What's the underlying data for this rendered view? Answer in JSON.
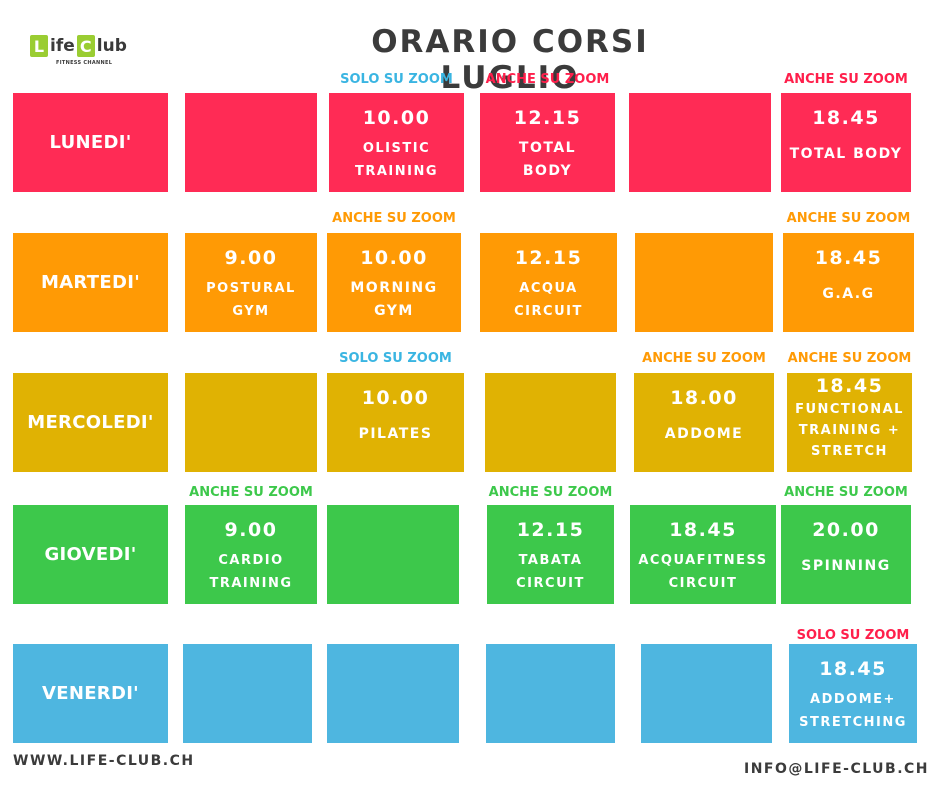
{
  "logo": {
    "l": "L",
    "ife": "ife",
    "c": "C",
    "lub": "lub",
    "subtitle": "FITNESS CHANNEL"
  },
  "title": "ORARIO CORSI LUGLIO",
  "colors": {
    "red": "#ff2b55",
    "orange": "#ff9a05",
    "yellow": "#e0b203",
    "green": "#3dc84b",
    "blue": "#4eb6e0",
    "solo_note": "#3ab5e2",
    "anche_note": "#ff9a05",
    "red_note": "#ff1f4b",
    "green_note": "#3dc84b"
  },
  "days": [
    {
      "name": "LUNEDI'",
      "notes": [
        "",
        "",
        "SOLO SU ZOOM",
        "ANCHE SU ZOOM",
        "",
        "ANCHE SU ZOOM"
      ],
      "classes": [
        {
          "time": "",
          "course": ""
        },
        {
          "time": "10.00",
          "course": "OLISTIC\nTRAINING"
        },
        {
          "time": "12.15",
          "course": "TOTAL\nBODY"
        },
        {
          "time": "",
          "course": ""
        },
        {
          "time": "18.45",
          "course": "TOTAL BODY"
        }
      ]
    },
    {
      "name": "MARTEDI'",
      "notes": [
        "",
        "",
        "ANCHE SU ZOOM",
        "",
        "",
        "ANCHE SU ZOOM"
      ],
      "classes": [
        {
          "time": "9.00",
          "course": "POSTURAL\nGYM"
        },
        {
          "time": "10.00",
          "course": "MORNING\nGYM"
        },
        {
          "time": "12.15",
          "course": "ACQUA\nCIRCUIT"
        },
        {
          "time": "",
          "course": ""
        },
        {
          "time": "18.45",
          "course": "G.A.G"
        }
      ]
    },
    {
      "name": "MERCOLEDI'",
      "notes": [
        "",
        "",
        "SOLO SU ZOOM",
        "",
        "ANCHE SU ZOOM",
        "ANCHE SU ZOOM"
      ],
      "classes": [
        {
          "time": "",
          "course": ""
        },
        {
          "time": "10.00",
          "course": "PILATES"
        },
        {
          "time": "",
          "course": ""
        },
        {
          "time": "18.00",
          "course": "ADDOME"
        },
        {
          "time": "18.45",
          "course": "FUNCTIONAL\nTRAINING +\nSTRETCH"
        }
      ]
    },
    {
      "name": "GIOVEDI'",
      "notes": [
        "",
        "ANCHE SU ZOOM",
        "",
        "ANCHE SU ZOOM",
        "",
        "ANCHE SU ZOOM"
      ],
      "classes": [
        {
          "time": "9.00",
          "course": "CARDIO\nTRAINING"
        },
        {
          "time": "",
          "course": ""
        },
        {
          "time": "12.15",
          "course": "TABATA\nCIRCUIT"
        },
        {
          "time": "18.45",
          "course": "ACQUAFITNESS\nCIRCUIT"
        },
        {
          "time": "20.00",
          "course": "SPINNING"
        }
      ]
    },
    {
      "name": "VENERDI'",
      "notes": [
        "",
        "",
        "",
        "",
        "",
        "SOLO SU ZOOM"
      ],
      "classes": [
        {
          "time": "",
          "course": ""
        },
        {
          "time": "",
          "course": ""
        },
        {
          "time": "",
          "course": ""
        },
        {
          "time": "",
          "course": ""
        },
        {
          "time": "18.45",
          "course": "ADDOME+\nSTRETCHING"
        }
      ]
    }
  ],
  "footer": {
    "website": "WWW.LIFE-CLUB.CH",
    "email": "INFO@LIFE-CLUB.CH"
  }
}
